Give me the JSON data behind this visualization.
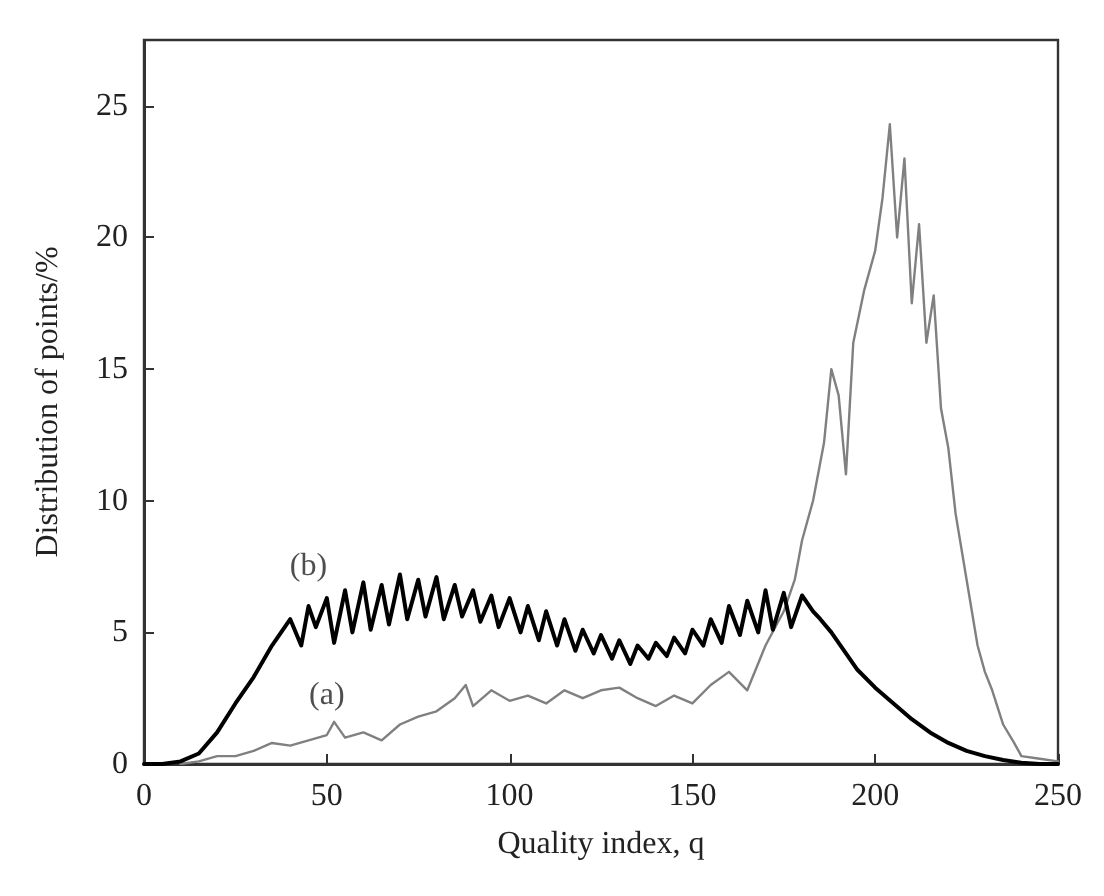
{
  "chart_data": {
    "type": "line",
    "xlabel": "Quality index, q",
    "ylabel": "Distribution of points/%",
    "xlim": [
      0,
      250
    ],
    "ylim": [
      0,
      27.5
    ],
    "xticks": [
      0,
      50,
      100,
      150,
      200,
      250
    ],
    "yticks": [
      0,
      5,
      10,
      15,
      20,
      25
    ],
    "grid": false,
    "marker": "none",
    "line_style": "solid",
    "annotations": [
      {
        "text": "(a)",
        "x": 50,
        "y": 1.1
      },
      {
        "text": "(b)",
        "x": 45,
        "y": 6.0
      }
    ],
    "series": [
      {
        "color": "#000000",
        "x": [
          0,
          5,
          10,
          15,
          20,
          25,
          30,
          35,
          40,
          43,
          45,
          47,
          50,
          52,
          55,
          57,
          60,
          62,
          65,
          67,
          70,
          72,
          75,
          77,
          80,
          82,
          85,
          87,
          90,
          92,
          95,
          97,
          100,
          103,
          105,
          108,
          110,
          113,
          115,
          118,
          120,
          123,
          125,
          128,
          130,
          133,
          135,
          138,
          140,
          143,
          145,
          148,
          150,
          153,
          155,
          158,
          160,
          163,
          165,
          168,
          170,
          172,
          175,
          177,
          180,
          183,
          185,
          188,
          190,
          195,
          200,
          205,
          210,
          215,
          220,
          225,
          230,
          235,
          240,
          245,
          250
        ],
        "values": [
          0,
          0,
          0.1,
          0.4,
          1.2,
          2.3,
          3.3,
          4.5,
          5.5,
          4.5,
          6.0,
          5.2,
          6.3,
          4.6,
          6.6,
          5.0,
          6.9,
          5.1,
          6.8,
          5.3,
          7.2,
          5.5,
          7.0,
          5.6,
          7.1,
          5.5,
          6.8,
          5.6,
          6.6,
          5.4,
          6.4,
          5.2,
          6.3,
          5.0,
          6.0,
          4.7,
          5.8,
          4.5,
          5.5,
          4.3,
          5.1,
          4.2,
          4.9,
          4.0,
          4.7,
          3.8,
          4.5,
          4.0,
          4.6,
          4.1,
          4.8,
          4.2,
          5.1,
          4.5,
          5.5,
          4.6,
          6.0,
          4.9,
          6.2,
          5.0,
          6.6,
          5.1,
          6.5,
          5.2,
          6.4,
          5.8,
          5.5,
          5.0,
          4.6,
          3.6,
          2.9,
          2.3,
          1.7,
          1.2,
          0.8,
          0.5,
          0.3,
          0.15,
          0.05,
          0,
          0
        ]
      },
      {
        "color": "#808080",
        "x": [
          10,
          15,
          20,
          25,
          30,
          35,
          40,
          45,
          50,
          52,
          55,
          60,
          65,
          70,
          75,
          80,
          85,
          88,
          90,
          95,
          100,
          105,
          110,
          115,
          120,
          125,
          130,
          135,
          140,
          145,
          150,
          155,
          160,
          165,
          170,
          175,
          178,
          180,
          183,
          186,
          188,
          190,
          192,
          194,
          197,
          200,
          202,
          204,
          206,
          208,
          210,
          212,
          214,
          216,
          218,
          220,
          222,
          225,
          228,
          230,
          232,
          235,
          238,
          240,
          245,
          250
        ],
        "values": [
          0,
          0.1,
          0.3,
          0.3,
          0.5,
          0.8,
          0.7,
          0.9,
          1.1,
          1.6,
          1.0,
          1.2,
          0.9,
          1.5,
          1.8,
          2.0,
          2.5,
          3.0,
          2.2,
          2.8,
          2.4,
          2.6,
          2.3,
          2.8,
          2.5,
          2.8,
          2.9,
          2.5,
          2.2,
          2.6,
          2.3,
          3.0,
          3.5,
          2.8,
          4.5,
          5.8,
          7.0,
          8.5,
          10.0,
          12.2,
          15.0,
          14.0,
          11.0,
          16.0,
          18.0,
          19.5,
          21.5,
          24.3,
          20.0,
          23.0,
          17.5,
          20.5,
          16.0,
          17.8,
          13.5,
          12.0,
          9.5,
          7.0,
          4.5,
          3.5,
          2.8,
          1.5,
          0.8,
          0.3,
          0.2,
          0.1
        ]
      }
    ]
  }
}
